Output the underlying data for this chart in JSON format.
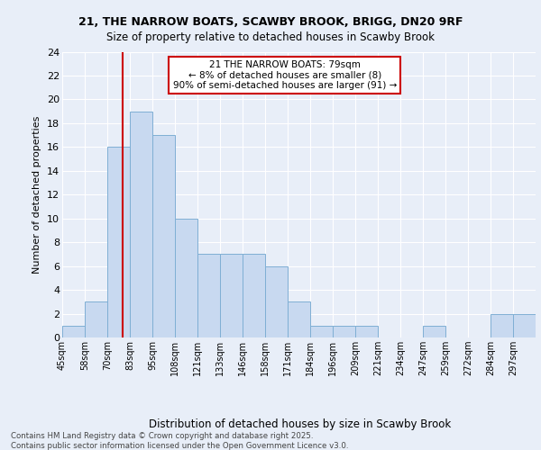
{
  "title1": "21, THE NARROW BOATS, SCAWBY BROOK, BRIGG, DN20 9RF",
  "title2": "Size of property relative to detached houses in Scawby Brook",
  "xlabel": "Distribution of detached houses by size in Scawby Brook",
  "ylabel": "Number of detached properties",
  "bin_labels": [
    "45sqm",
    "58sqm",
    "70sqm",
    "83sqm",
    "95sqm",
    "108sqm",
    "121sqm",
    "133sqm",
    "146sqm",
    "158sqm",
    "171sqm",
    "184sqm",
    "196sqm",
    "209sqm",
    "221sqm",
    "234sqm",
    "247sqm",
    "259sqm",
    "272sqm",
    "284sqm",
    "297sqm"
  ],
  "bar_values": [
    1,
    3,
    16,
    19,
    17,
    10,
    7,
    7,
    7,
    6,
    3,
    1,
    1,
    1,
    0,
    0,
    1,
    0,
    0,
    2,
    2
  ],
  "bar_color": "#c8d9f0",
  "bar_edge_color": "#7fafd4",
  "ylim": [
    0,
    24
  ],
  "yticks": [
    0,
    2,
    4,
    6,
    8,
    10,
    12,
    14,
    16,
    18,
    20,
    22,
    24
  ],
  "annotation_text": "21 THE NARROW BOATS: 79sqm\n← 8% of detached houses are smaller (8)\n90% of semi-detached houses are larger (91) →",
  "annotation_box_color": "#ffffff",
  "annotation_box_edge": "#cc0000",
  "vline_color": "#cc0000",
  "footnote": "Contains HM Land Registry data © Crown copyright and database right 2025.\nContains public sector information licensed under the Open Government Licence v3.0.",
  "background_color": "#e8eef8",
  "grid_color": "#ffffff",
  "vline_bin_index": 2.692
}
